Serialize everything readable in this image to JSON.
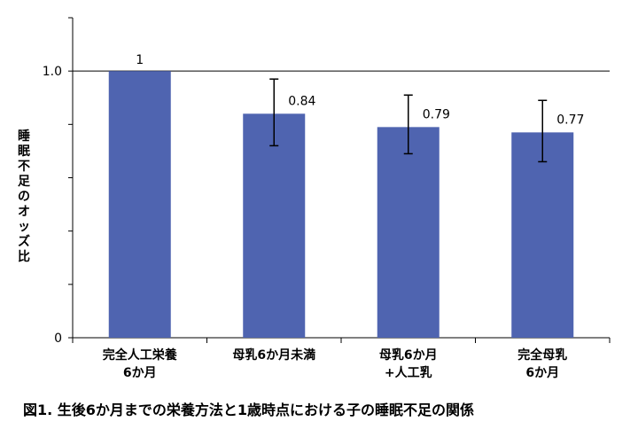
{
  "chart_data": {
    "type": "bar",
    "title": "",
    "caption": "図1. 生後6か月までの栄養方法と1歳時点における子の睡眠不足の関係",
    "ylabel": "睡眠不足のオッズ比",
    "xlabel": "",
    "ylim": [
      0,
      1.2
    ],
    "yticks": [
      {
        "value": 0,
        "label": "0"
      },
      {
        "value": 1.0,
        "label": "1.0"
      }
    ],
    "gridlines": [
      1.0
    ],
    "categories": [
      [
        "完全人工栄養",
        "6か月"
      ],
      [
        "母乳6か月未満"
      ],
      [
        "母乳6か月",
        "+人工乳"
      ],
      [
        "完全母乳",
        "6か月"
      ]
    ],
    "series": [
      {
        "values": [
          1,
          0.84,
          0.79,
          0.77
        ],
        "value_labels": [
          "1",
          "0.84",
          "0.79",
          "0.77"
        ],
        "error_low": [
          null,
          0.72,
          0.69,
          0.66
        ],
        "error_high": [
          null,
          0.97,
          0.91,
          0.89
        ],
        "color": "#4f64b0"
      }
    ]
  }
}
